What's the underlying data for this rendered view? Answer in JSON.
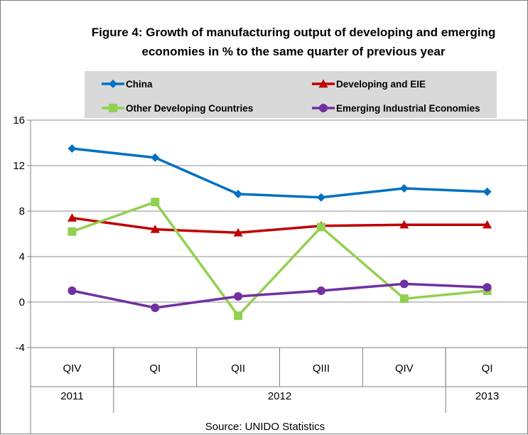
{
  "chart_data": {
    "type": "line",
    "title_lines": [
      "Figure 4: Growth of manufacturing output of developing  and emerging",
      "economies in % to the same quarter of previous year"
    ],
    "x": [
      {
        "quarter": "QIV",
        "year": "2011"
      },
      {
        "quarter": "QI",
        "year": "2012"
      },
      {
        "quarter": "QII",
        "year": "2012"
      },
      {
        "quarter": "QIII",
        "year": "2012"
      },
      {
        "quarter": "QIV",
        "year": "2012"
      },
      {
        "quarter": "QI",
        "year": "2013"
      }
    ],
    "year_groups": [
      {
        "label": "2011",
        "start": 0,
        "end": 0
      },
      {
        "label": "2012",
        "start": 1,
        "end": 4
      },
      {
        "label": "2013",
        "start": 5,
        "end": 5
      }
    ],
    "ylim": [
      -4,
      16
    ],
    "yticks": [
      -4,
      0,
      4,
      8,
      12,
      16
    ],
    "ytick_labels": [
      "-4",
      "0",
      "4",
      "8",
      "12",
      "16"
    ],
    "grid": "horizontal",
    "legend": {
      "placement": "top",
      "background": "#d9d9d9"
    },
    "series": [
      {
        "name": "China",
        "color": "#0070c0",
        "marker": "diamond",
        "values": [
          13.5,
          12.7,
          9.5,
          9.2,
          10.0,
          9.7
        ]
      },
      {
        "name": "Developing and EIE",
        "color": "#c00000",
        "marker": "triangle",
        "values": [
          7.4,
          6.4,
          6.1,
          6.7,
          6.8,
          6.8
        ]
      },
      {
        "name": "Other Developing Countries",
        "color": "#92d050",
        "marker": "square",
        "values": [
          6.2,
          8.8,
          -1.2,
          6.6,
          0.3,
          1.0
        ]
      },
      {
        "name": "Emerging Industrial Economies",
        "color": "#7030a0",
        "marker": "circle",
        "values": [
          1.0,
          -0.5,
          0.5,
          1.0,
          1.6,
          1.3
        ]
      }
    ],
    "source": "Source: UNIDO Statistics"
  }
}
